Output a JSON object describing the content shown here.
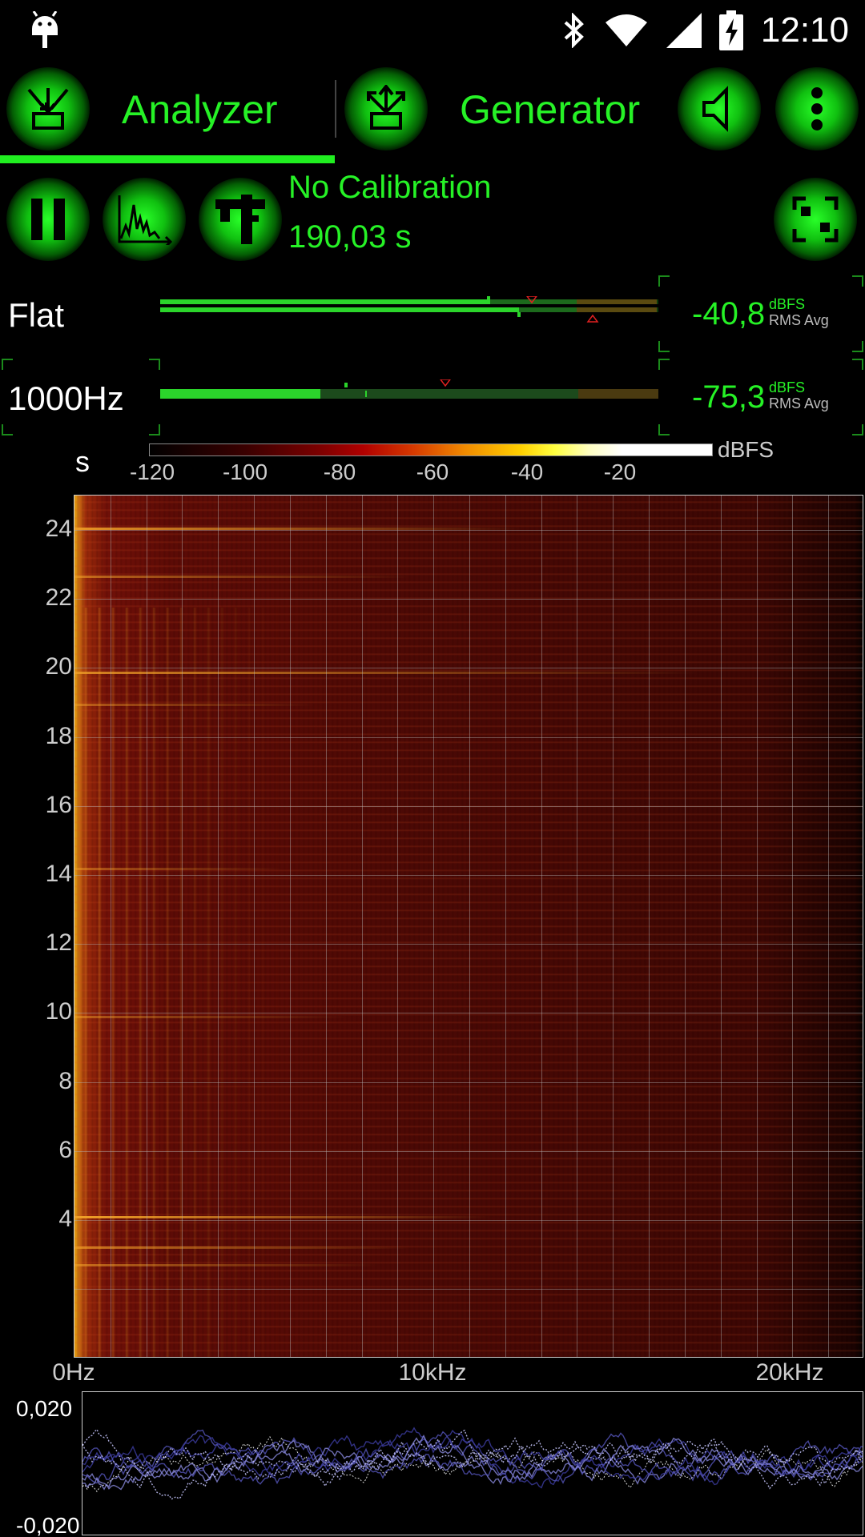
{
  "status_bar": {
    "time": "12:10",
    "icons": [
      "android-icon",
      "bluetooth-icon",
      "wifi-icon",
      "signal-icon",
      "battery-charging-icon"
    ]
  },
  "toolbar": {
    "analyzer_label": "Analyzer",
    "generator_label": "Generator",
    "icons": [
      "analyzer-input-icon",
      "generator-output-icon",
      "speaker-icon",
      "more-vert-icon"
    ]
  },
  "controls": {
    "calibration": "No Calibration",
    "elapsed": "190,03 s",
    "icons": [
      "pause-icon",
      "spectrum-icon",
      "caliper-icon",
      "fullscreen-icon"
    ]
  },
  "meters": [
    {
      "label": "Flat",
      "value": "-40,8",
      "unit": "dBFS",
      "mode": "RMS Avg"
    },
    {
      "label": "1000Hz",
      "value": "-75,3",
      "unit": "dBFS",
      "mode": "RMS Avg"
    }
  ],
  "colorbar": {
    "axis_label": "s",
    "unit": "dBFS",
    "ticks": [
      "-120",
      "-100",
      "-80",
      "-60",
      "-40",
      "-20"
    ]
  },
  "spectrogram": {
    "y_ticks": [
      "24",
      "22",
      "20",
      "18",
      "16",
      "14",
      "12",
      "10",
      "8",
      "6",
      "4"
    ],
    "x_ticks": [
      "0Hz",
      "10kHz",
      "20kHz"
    ]
  },
  "waveform": {
    "y_top": "0,020",
    "y_bottom": "-0,020"
  },
  "colors": {
    "accent": "#26f226",
    "background": "#000000"
  }
}
